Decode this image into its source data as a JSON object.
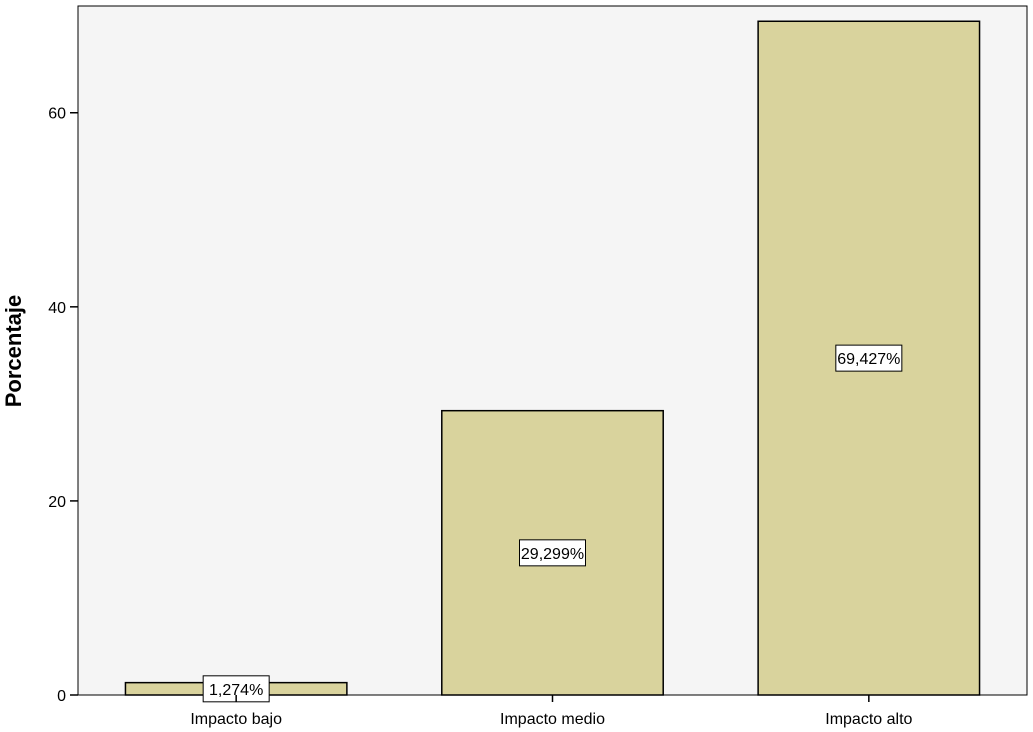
{
  "chart_data": {
    "type": "bar",
    "categories": [
      "Impacto bajo",
      "Impacto medio",
      "Impacto alto"
    ],
    "values": [
      1.274,
      29.299,
      69.427
    ],
    "data_labels": [
      "1,274%",
      "29,299%",
      "69,427%"
    ],
    "title": "",
    "xlabel": "",
    "ylabel": "Porcentaje",
    "ylim": [
      0,
      71
    ],
    "yticks": [
      0,
      20,
      40,
      60
    ],
    "grid": false,
    "legend": "none"
  },
  "colors": {
    "bar_fill": "#d9d39d",
    "bar_stroke": "#000000",
    "plot_background": "#f5f5f5",
    "label_box_fill": "#ffffff"
  }
}
